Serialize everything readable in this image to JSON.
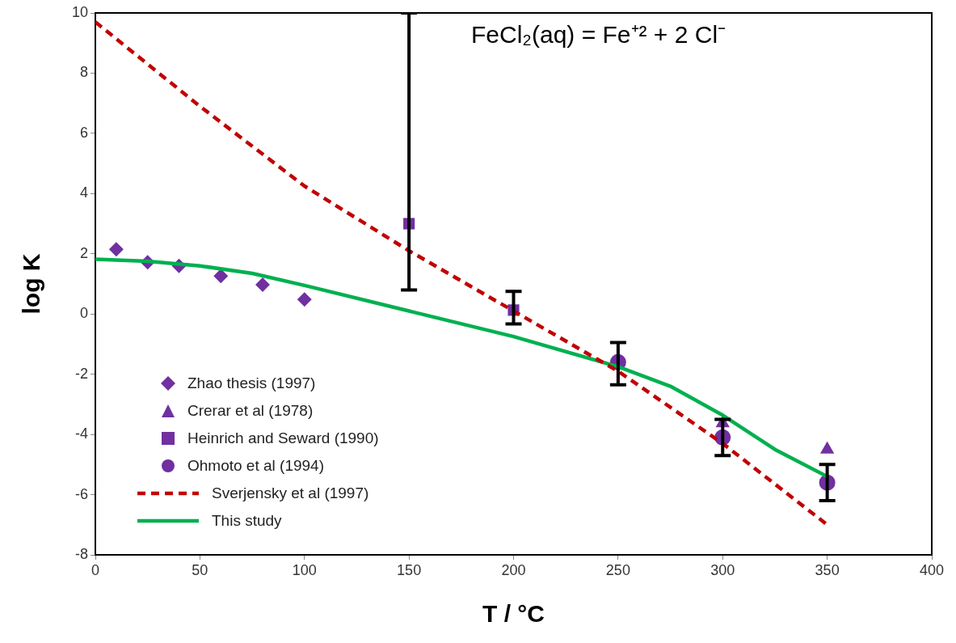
{
  "chart_data": {
    "type": "scatter",
    "title": "FeCl₂(aq) = Fe⁺² + 2 Cl⁻",
    "xlabel": "T / °C",
    "ylabel": "log K",
    "xlim": [
      0,
      400
    ],
    "xticks": [
      0,
      50,
      100,
      150,
      200,
      250,
      300,
      350,
      400
    ],
    "ylim": [
      -8,
      10
    ],
    "yticks": [
      -8,
      -6,
      -4,
      -2,
      0,
      2,
      4,
      6,
      8,
      10
    ],
    "grid": false,
    "legend": "bottom left",
    "series": [
      {
        "name": "Zhao thesis (1997)",
        "type": "scatter",
        "marker": "diamond",
        "color": "#7030a0",
        "x": [
          10,
          25,
          40,
          60,
          80,
          100
        ],
        "values": [
          2.15,
          1.72,
          1.6,
          1.26,
          0.97,
          0.48
        ]
      },
      {
        "name": "Crerar et al (1978)",
        "type": "scatter",
        "marker": "triangle",
        "color": "#7030a0",
        "x": [
          300,
          350
        ],
        "values": [
          -3.63,
          -4.5
        ]
      },
      {
        "name": "Heinrich and Seward (1990)",
        "type": "scatter",
        "marker": "square",
        "color": "#7030a0",
        "x": [
          150,
          200
        ],
        "values": [
          3.0,
          0.13
        ],
        "errors": [
          [
            0.8,
            10
          ],
          [
            -0.33,
            0.75
          ]
        ]
      },
      {
        "name": "Ohmoto et al (1994)",
        "type": "scatter",
        "marker": "circle",
        "color": "#7030a0",
        "x": [
          250,
          300,
          350
        ],
        "values": [
          -1.6,
          -4.1,
          -5.6
        ],
        "errors": [
          [
            -2.35,
            -0.95
          ],
          [
            -4.7,
            -3.5
          ],
          [
            -6.2,
            -5.0
          ]
        ]
      },
      {
        "name": "Sverjensky et al (1997)",
        "type": "line",
        "marker": "none",
        "line_style": "dashed",
        "color": "#c00000",
        "x": [
          0,
          50,
          100,
          150,
          200,
          250,
          300,
          350
        ],
        "values": [
          9.7,
          6.9,
          4.25,
          2.1,
          0.1,
          -1.9,
          -4.3,
          -7.0
        ]
      },
      {
        "name": "This study",
        "type": "line",
        "marker": "none",
        "line_style": "solid",
        "color": "#00b050",
        "x": [
          0,
          25,
          50,
          75,
          100,
          150,
          200,
          250,
          275,
          300,
          325,
          350
        ],
        "values": [
          1.82,
          1.75,
          1.6,
          1.35,
          0.95,
          0.1,
          -0.75,
          -1.75,
          -2.4,
          -3.36,
          -4.5,
          -5.4
        ]
      }
    ]
  }
}
